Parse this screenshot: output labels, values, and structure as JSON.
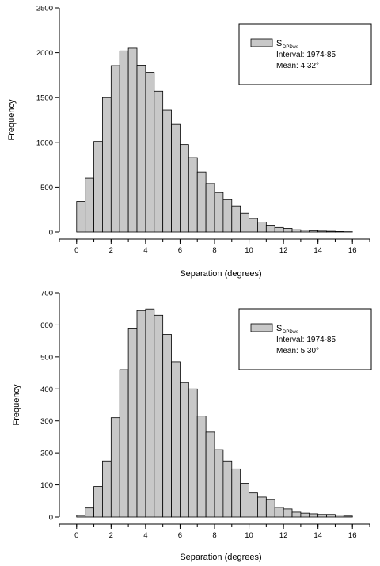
{
  "chart_data": [
    {
      "type": "bar",
      "xlabel": "Separation (degrees)",
      "ylabel": "Frequency",
      "xlim": [
        -1,
        17
      ],
      "ylim": [
        0,
        2500
      ],
      "xticks": [
        0,
        2,
        4,
        6,
        8,
        10,
        12,
        14,
        16
      ],
      "yticks": [
        0,
        500,
        1000,
        1500,
        2000,
        2500
      ],
      "bin_width": 0.5,
      "x": [
        0,
        0.5,
        1,
        1.5,
        2,
        2.5,
        3,
        3.5,
        4,
        4.5,
        5,
        5.5,
        6,
        6.5,
        7,
        7.5,
        8,
        8.5,
        9,
        9.5,
        10,
        10.5,
        11,
        11.5,
        12,
        12.5,
        13,
        13.5,
        14,
        14.5,
        15,
        15.5
      ],
      "values": [
        340,
        600,
        1010,
        1500,
        1855,
        2020,
        2050,
        1860,
        1780,
        1570,
        1360,
        1200,
        975,
        830,
        670,
        540,
        440,
        360,
        290,
        210,
        150,
        110,
        75,
        50,
        40,
        25,
        20,
        15,
        10,
        8,
        5,
        3
      ],
      "legend": {
        "series_symbol": "S",
        "series_subscript": "DPDws",
        "interval": "Interval: 1974-85",
        "mean": "Mean: 4.32°",
        "placement": "top-right"
      },
      "grid": false,
      "bar_color": "#c8c8c8"
    },
    {
      "type": "bar",
      "xlabel": "Separation (degrees)",
      "ylabel": "Frequency",
      "xlim": [
        -1,
        17
      ],
      "ylim": [
        0,
        700
      ],
      "xticks": [
        0,
        2,
        4,
        6,
        8,
        10,
        12,
        14,
        16
      ],
      "yticks": [
        0,
        100,
        200,
        300,
        400,
        500,
        600,
        700
      ],
      "bin_width": 0.5,
      "x": [
        0,
        0.5,
        1,
        1.5,
        2,
        2.5,
        3,
        3.5,
        4,
        4.5,
        5,
        5.5,
        6,
        6.5,
        7,
        7.5,
        8,
        8.5,
        9,
        9.5,
        10,
        10.5,
        11,
        11.5,
        12,
        12.5,
        13,
        13.5,
        14,
        14.5,
        15,
        15.5
      ],
      "values": [
        5,
        28,
        95,
        175,
        310,
        460,
        590,
        645,
        650,
        630,
        570,
        485,
        420,
        400,
        315,
        265,
        210,
        175,
        150,
        105,
        75,
        62,
        55,
        30,
        25,
        15,
        12,
        10,
        8,
        8,
        6,
        3
      ],
      "legend": {
        "series_symbol": "S",
        "series_subscript": "DPDws",
        "interval": "Interval: 1974-85",
        "mean": "Mean: 5.30°",
        "placement": "top-right"
      },
      "grid": false,
      "bar_color": "#c8c8c8"
    }
  ]
}
